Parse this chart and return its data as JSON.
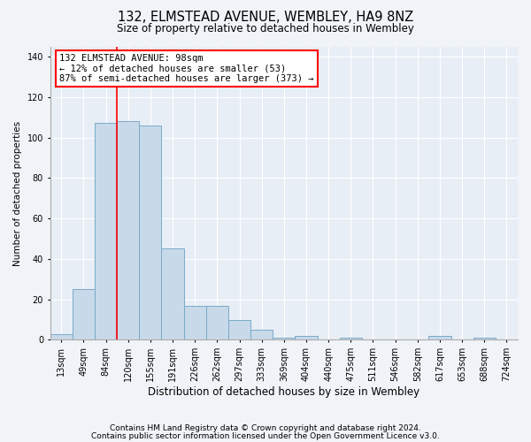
{
  "title": "132, ELMSTEAD AVENUE, WEMBLEY, HA9 8NZ",
  "subtitle": "Size of property relative to detached houses in Wembley",
  "xlabel": "Distribution of detached houses by size in Wembley",
  "ylabel": "Number of detached properties",
  "bin_labels": [
    "13sqm",
    "49sqm",
    "84sqm",
    "120sqm",
    "155sqm",
    "191sqm",
    "226sqm",
    "262sqm",
    "297sqm",
    "333sqm",
    "369sqm",
    "404sqm",
    "440sqm",
    "475sqm",
    "511sqm",
    "546sqm",
    "582sqm",
    "617sqm",
    "653sqm",
    "688sqm",
    "724sqm"
  ],
  "bar_heights": [
    3,
    25,
    107,
    108,
    106,
    45,
    17,
    17,
    10,
    5,
    1,
    2,
    0,
    1,
    0,
    0,
    0,
    2,
    0,
    1,
    0
  ],
  "bar_color": "#c8d9ea",
  "bar_edge_color": "#7aaac8",
  "red_line_x": 2.5,
  "annotation_line1": "132 ELMSTEAD AVENUE: 98sqm",
  "annotation_line2": "← 12% of detached houses are smaller (53)",
  "annotation_line3": "87% of semi-detached houses are larger (373) →",
  "annotation_box_color": "white",
  "annotation_box_edge_color": "red",
  "ylim": [
    0,
    145
  ],
  "yticks": [
    0,
    20,
    40,
    60,
    80,
    100,
    120,
    140
  ],
  "footer1": "Contains HM Land Registry data © Crown copyright and database right 2024.",
  "footer2": "Contains public sector information licensed under the Open Government Licence v3.0.",
  "bg_color": "#f0f4f8",
  "plot_bg_color": "#e8eef5",
  "grid_color": "#ffffff",
  "title_fontsize": 10.5,
  "subtitle_fontsize": 8.5,
  "xlabel_fontsize": 8.5,
  "ylabel_fontsize": 7.5,
  "tick_fontsize": 7,
  "annotation_fontsize": 7.5,
  "footer_fontsize": 6.5
}
